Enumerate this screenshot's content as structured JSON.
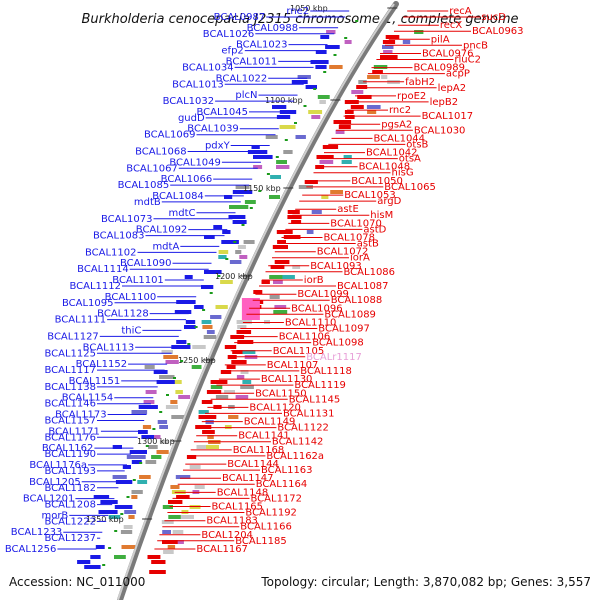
{
  "title": "Burkholderia cenocepacia J2315 chromosome 1, complete genome",
  "accession": "Accession: NC_011000",
  "summary": "Topology: circular; Length: 3,870,082 bp; Genes: 3,557",
  "colors": {
    "reverse": "#1a1ae6",
    "forward": "#e60000",
    "highlight": "#e8a0d8",
    "backbone": "#7a7a7a",
    "tick": "#1a9a1a"
  },
  "kbp_labels": [
    "1050 kbp",
    "1100 kbp",
    "1150 kbp",
    "1200 kbp",
    "1250 kbp",
    "1300 kbp",
    "1350 kbp"
  ],
  "reverse_genes": [
    "rne2",
    "BCAL0987",
    "BCAL0988",
    "BCAL1026",
    "BCAL1023",
    "efp2",
    "BCAL1011",
    "BCAL1034",
    "BCAL1022",
    "BCAL1013",
    "plcN",
    "BCAL1032",
    "BCAL1045",
    "gudD",
    "BCAL1039",
    "BCAL1069",
    "pdxY",
    "BCAL1068",
    "BCAL1049",
    "BCAL1067",
    "BCAL1066",
    "BCAL1085",
    "BCAL1084",
    "mdtB",
    "mdtC",
    "BCAL1073",
    "BCAL1092",
    "BCAL1083",
    "mdtA",
    "BCAL1102",
    "BCAL1090",
    "BCAL1114",
    "BCAL1101",
    "BCAL1112",
    "BCAL1100",
    "BCAL1095",
    "BCAL1128",
    "BCAL1111",
    "thiC",
    "BCAL1127",
    "BCAL1113",
    "BCAL1125",
    "BCAL1152",
    "BCAL1117",
    "BCAL1151",
    "BCAL1138",
    "BCAL1154",
    "BCAL1146",
    "BCAL1173",
    "BCAL1157",
    "BCAL1171",
    "BCAL1176",
    "BCAL1162",
    "BCAL1190",
    "BCAL1176a",
    "BCAL1193",
    "BCAL1205",
    "BCAL1182",
    "BCAL1201",
    "BCAL1208",
    "morB",
    "BCAL1222",
    "BCAL1233",
    "BCAL1237",
    "BCAL1256"
  ],
  "forward_genes": [
    "recA",
    "sucD",
    "recX",
    "BCAL0963",
    "pilA",
    "pncB",
    "BCAL0976",
    "rluC2",
    "BCAL0989",
    "acpP",
    "fabH2",
    "lepA2",
    "rpoE2",
    "lepB2",
    "rnc2",
    "BCAL1017",
    "pgsA2",
    "BCAL1030",
    "BCAL1044",
    "otsB",
    "BCAL1042",
    "otsA",
    "BCAL1048",
    "hisG",
    "BCAL1050",
    "BCAL1065",
    "BCAL1053",
    "argD",
    "astE",
    "hisM",
    "BCAL1070",
    "astD",
    "BCAL1078",
    "astB",
    "BCAL1072",
    "iorA",
    "BCAL1093",
    "BCAL1086",
    "iorB",
    "BCAL1087",
    "BCAL1099",
    "BCAL1088",
    "BCAL1096",
    "BCAL1089",
    "BCAL1110",
    "BCAL1097",
    "BCAL1106",
    "BCAL1098",
    "BCAL1105",
    "BCALr1117",
    "BCAL1107",
    "BCAL1118",
    "BCAL1130",
    "BCAL1119",
    "BCAL1150",
    "BCAL1145",
    "BCAL1120",
    "BCAL1131",
    "BCAL1149",
    "BCAL1122",
    "BCAL1141",
    "BCAL1142",
    "BCAL1168",
    "BCAL1162a",
    "BCAL1144",
    "BCAL1163",
    "BCAL1147",
    "BCAL1164",
    "BCAL1148",
    "BCAL1172",
    "BCAL1165",
    "BCAL1192",
    "BCAL1183",
    "BCAL1166",
    "BCAL1204",
    "BCAL1185",
    "BCAL1167"
  ]
}
